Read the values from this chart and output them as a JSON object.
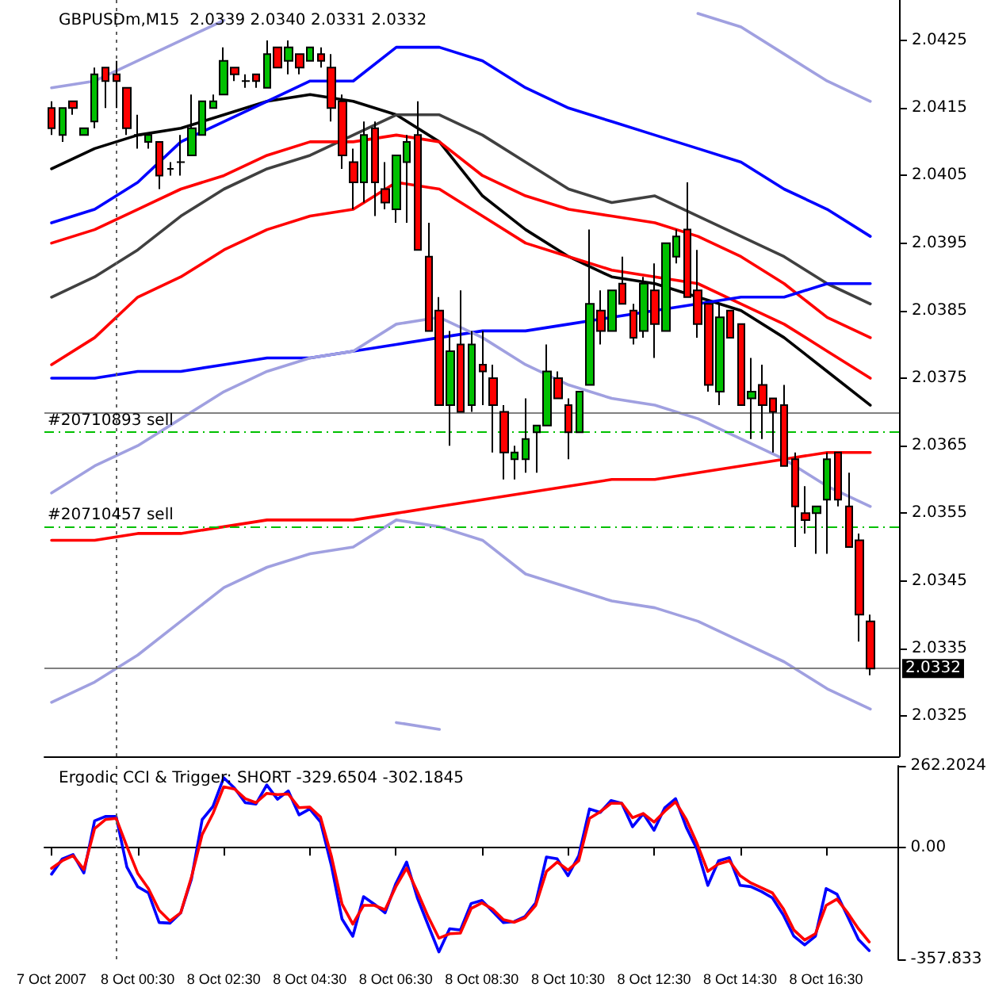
{
  "chart_data": [
    {
      "type": "candlestick",
      "title": "GBPUSDm,M15  2.0339 2.0340 2.0331 2.0332",
      "tick_labels": "y",
      "x": [
        "2007-10-07T22:30",
        "2007-10-07T22:45",
        "2007-10-07T23:00",
        "2007-10-07T23:15",
        "2007-10-07T23:30",
        "2007-10-07T23:45",
        "2007-10-08T00:00",
        "2007-10-08T00:15",
        "2007-10-08T00:30",
        "2007-10-08T00:45",
        "2007-10-08T01:00",
        "2007-10-08T01:15",
        "2007-10-08T01:30",
        "2007-10-08T01:45",
        "2007-10-08T02:00",
        "2007-10-08T02:15",
        "2007-10-08T02:30",
        "2007-10-08T02:45",
        "2007-10-08T03:00",
        "2007-10-08T03:15",
        "2007-10-08T03:30",
        "2007-10-08T03:45",
        "2007-10-08T04:00",
        "2007-10-08T04:15",
        "2007-10-08T04:30",
        "2007-10-08T04:45",
        "2007-10-08T05:00",
        "2007-10-08T05:15",
        "2007-10-08T05:30",
        "2007-10-08T05:45",
        "2007-10-08T06:00",
        "2007-10-08T06:15",
        "2007-10-08T06:30",
        "2007-10-08T06:45",
        "2007-10-08T07:00",
        "2007-10-08T07:15",
        "2007-10-08T07:30",
        "2007-10-08T07:45",
        "2007-10-08T08:00",
        "2007-10-08T08:15",
        "2007-10-08T08:30",
        "2007-10-08T08:45",
        "2007-10-08T09:00",
        "2007-10-08T09:15",
        "2007-10-08T09:30",
        "2007-10-08T09:45",
        "2007-10-08T10:00",
        "2007-10-08T10:15",
        "2007-10-08T10:30",
        "2007-10-08T10:45",
        "2007-10-08T11:00",
        "2007-10-08T11:15",
        "2007-10-08T11:30",
        "2007-10-08T11:45",
        "2007-10-08T12:00",
        "2007-10-08T12:15",
        "2007-10-08T12:30",
        "2007-10-08T12:45",
        "2007-10-08T13:00",
        "2007-10-08T13:15",
        "2007-10-08T13:30",
        "2007-10-08T13:45",
        "2007-10-08T14:00",
        "2007-10-08T14:15",
        "2007-10-08T14:30",
        "2007-10-08T14:45",
        "2007-10-08T15:00",
        "2007-10-08T15:15",
        "2007-10-08T15:30",
        "2007-10-08T15:45",
        "2007-10-08T16:00",
        "2007-10-08T16:15",
        "2007-10-08T16:30",
        "2007-10-08T16:45",
        "2007-10-08T17:00",
        "2007-10-08T17:15",
        "2007-10-08T17:30"
      ],
      "ohlc": [
        [
          2.0415,
          2.0416,
          2.0411,
          2.0412
        ],
        [
          2.0411,
          2.0415,
          2.041,
          2.0415
        ],
        [
          2.0416,
          2.0416,
          2.0414,
          2.0415
        ],
        [
          2.0411,
          2.0412,
          2.0411,
          2.0412
        ],
        [
          2.0413,
          2.0421,
          2.0412,
          2.042
        ],
        [
          2.0421,
          2.0421,
          2.0415,
          2.0419
        ],
        [
          2.042,
          2.0422,
          2.0415,
          2.0419
        ],
        [
          2.0418,
          2.0418,
          2.0411,
          2.0412
        ],
        [
          2.0411,
          2.0414,
          2.0409,
          2.0411
        ],
        [
          2.041,
          2.0411,
          2.0409,
          2.0411
        ],
        [
          2.041,
          2.041,
          2.0403,
          2.0405
        ],
        [
          2.0406,
          2.0407,
          2.0405,
          2.0406
        ],
        [
          2.0407,
          2.0411,
          2.0405,
          2.0407
        ],
        [
          2.0408,
          2.0417,
          2.0408,
          2.0412
        ],
        [
          2.0411,
          2.0416,
          2.0411,
          2.0416
        ],
        [
          2.0415,
          2.0417,
          2.0415,
          2.0416
        ],
        [
          2.0417,
          2.0424,
          2.0417,
          2.0422
        ],
        [
          2.0421,
          2.0421,
          2.0419,
          2.042
        ],
        [
          2.0419,
          2.042,
          2.0418,
          2.0419
        ],
        [
          2.042,
          2.042,
          2.0418,
          2.0419
        ],
        [
          2.0418,
          2.0425,
          2.0418,
          2.0423
        ],
        [
          2.0424,
          2.0424,
          2.0421,
          2.0421
        ],
        [
          2.0422,
          2.0425,
          2.042,
          2.0424
        ],
        [
          2.0423,
          2.0423,
          2.042,
          2.0421
        ],
        [
          2.0422,
          2.0424,
          2.0422,
          2.0424
        ],
        [
          2.0423,
          2.0424,
          2.0421,
          2.0422
        ],
        [
          2.0421,
          2.0423,
          2.0413,
          2.0415
        ],
        [
          2.0416,
          2.0417,
          2.0406,
          2.0408
        ],
        [
          2.0407,
          2.0409,
          2.04,
          2.0404
        ],
        [
          2.0404,
          2.0413,
          2.0401,
          2.0411
        ],
        [
          2.0412,
          2.0413,
          2.0399,
          2.0404
        ],
        [
          2.0403,
          2.0407,
          2.04,
          2.0401
        ],
        [
          2.04,
          2.0408,
          2.0398,
          2.0408
        ],
        [
          2.0407,
          2.0411,
          2.0398,
          2.041
        ],
        [
          2.0411,
          2.0416,
          2.0394,
          2.0394
        ],
        [
          2.0393,
          2.0398,
          2.0382,
          2.0382
        ],
        [
          2.0385,
          2.0387,
          2.0371,
          2.0371
        ],
        [
          2.0371,
          2.0382,
          2.0365,
          2.0379
        ],
        [
          2.038,
          2.0388,
          2.037,
          2.037
        ],
        [
          2.0371,
          2.0382,
          2.037,
          2.038
        ],
        [
          2.0377,
          2.0382,
          2.0371,
          2.0376
        ],
        [
          2.0375,
          2.0377,
          2.0364,
          2.0371
        ],
        [
          2.037,
          2.0371,
          2.036,
          2.0364
        ],
        [
          2.0363,
          2.0365,
          2.036,
          2.0364
        ],
        [
          2.0363,
          2.0372,
          2.0361,
          2.0366
        ],
        [
          2.0367,
          2.0368,
          2.0361,
          2.0368
        ],
        [
          2.0368,
          2.038,
          2.0368,
          2.0376
        ],
        [
          2.0375,
          2.0376,
          2.0372,
          2.0372
        ],
        [
          2.0371,
          2.0372,
          2.0363,
          2.0367
        ],
        [
          2.0367,
          2.0373,
          2.0367,
          2.0373
        ],
        [
          2.0374,
          2.0397,
          2.0374,
          2.0386
        ],
        [
          2.0385,
          2.0388,
          2.038,
          2.0382
        ],
        [
          2.0382,
          2.0388,
          2.0382,
          2.0388
        ],
        [
          2.0389,
          2.0393,
          2.0386,
          2.0386
        ],
        [
          2.0385,
          2.0386,
          2.038,
          2.0381
        ],
        [
          2.0382,
          2.039,
          2.0381,
          2.0389
        ],
        [
          2.0388,
          2.0392,
          2.0378,
          2.0383
        ],
        [
          2.0382,
          2.0395,
          2.0382,
          2.0395
        ],
        [
          2.0393,
          2.0397,
          2.0392,
          2.0396
        ],
        [
          2.0397,
          2.0404,
          2.0387,
          2.0387
        ],
        [
          2.0388,
          2.0394,
          2.0381,
          2.0383
        ],
        [
          2.0386,
          2.0386,
          2.0373,
          2.0374
        ],
        [
          2.0373,
          2.0386,
          2.0371,
          2.0384
        ],
        [
          2.0385,
          2.0385,
          2.0381,
          2.0381
        ],
        [
          2.0383,
          2.0383,
          2.0371,
          2.0371
        ],
        [
          2.0372,
          2.0378,
          2.0366,
          2.0373
        ],
        [
          2.0374,
          2.0377,
          2.0366,
          2.0371
        ],
        [
          2.0372,
          2.0372,
          2.0364,
          2.037
        ],
        [
          2.0371,
          2.0374,
          2.0362,
          2.0362
        ],
        [
          2.0363,
          2.0364,
          2.035,
          2.0356
        ],
        [
          2.0355,
          2.0359,
          2.0352,
          2.0354
        ],
        [
          2.0355,
          2.0356,
          2.0349,
          2.0356
        ],
        [
          2.0357,
          2.0364,
          2.0349,
          2.0363
        ],
        [
          2.0364,
          2.0364,
          2.0356,
          2.0357
        ],
        [
          2.0356,
          2.0361,
          2.035,
          2.035
        ],
        [
          2.0351,
          2.0352,
          2.0336,
          2.034
        ],
        [
          2.0339,
          2.034,
          2.0331,
          2.0332
        ]
      ],
      "series": [
        {
          "type": "line",
          "color": "#000000",
          "x": [
            "2007-10-07T22:30",
            "2007-10-07T23:30",
            "2007-10-08T00:30",
            "2007-10-08T01:30",
            "2007-10-08T02:30",
            "2007-10-08T03:30",
            "2007-10-08T04:30",
            "2007-10-08T05:30",
            "2007-10-08T06:30",
            "2007-10-08T07:30",
            "2007-10-08T08:30",
            "2007-10-08T09:30",
            "2007-10-08T10:30",
            "2007-10-08T11:30",
            "2007-10-08T12:30",
            "2007-10-08T13:30",
            "2007-10-08T14:30",
            "2007-10-08T15:30",
            "2007-10-08T16:30",
            "2007-10-08T17:30"
          ],
          "values": [
            2.0406,
            2.0409,
            2.0411,
            2.0412,
            2.0414,
            2.0416,
            2.0417,
            2.0416,
            2.0414,
            2.041,
            2.0402,
            2.0397,
            2.0393,
            2.039,
            2.0389,
            2.0387,
            2.0385,
            2.0381,
            2.0376,
            2.0371
          ]
        },
        {
          "type": "line",
          "color": "#0000ff",
          "x": [
            "2007-10-07T22:30",
            "2007-10-07T23:30",
            "2007-10-08T00:30",
            "2007-10-08T01:30",
            "2007-10-08T02:30",
            "2007-10-08T03:30",
            "2007-10-08T04:30",
            "2007-10-08T05:30",
            "2007-10-08T06:30",
            "2007-10-08T07:30",
            "2007-10-08T08:30",
            "2007-10-08T09:30",
            "2007-10-08T10:30",
            "2007-10-08T11:30",
            "2007-10-08T12:30",
            "2007-10-08T13:30",
            "2007-10-08T14:30",
            "2007-10-08T15:30",
            "2007-10-08T16:30",
            "2007-10-08T17:30"
          ],
          "values": [
            2.0398,
            2.04,
            2.0404,
            2.041,
            2.0413,
            2.0416,
            2.0419,
            2.0419,
            2.0424,
            2.0424,
            2.0422,
            2.0418,
            2.0415,
            2.0413,
            2.0411,
            2.0409,
            2.0407,
            2.0403,
            2.04,
            2.0396
          ]
        },
        {
          "type": "line",
          "color": "#404040",
          "x": [
            "2007-10-07T22:30",
            "2007-10-07T23:30",
            "2007-10-08T00:30",
            "2007-10-08T01:30",
            "2007-10-08T02:30",
            "2007-10-08T03:30",
            "2007-10-08T04:30",
            "2007-10-08T05:30",
            "2007-10-08T06:30",
            "2007-10-08T07:30",
            "2007-10-08T08:30",
            "2007-10-08T09:30",
            "2007-10-08T10:30",
            "2007-10-08T11:30",
            "2007-10-08T12:30",
            "2007-10-08T13:30",
            "2007-10-08T14:30",
            "2007-10-08T15:30",
            "2007-10-08T16:30",
            "2007-10-08T17:30"
          ],
          "values": [
            2.0387,
            2.039,
            2.0394,
            2.0399,
            2.0403,
            2.0406,
            2.0408,
            2.0411,
            2.0414,
            2.0414,
            2.0411,
            2.0407,
            2.0403,
            2.0401,
            2.0402,
            2.0399,
            2.0396,
            2.0393,
            2.0389,
            2.0386
          ]
        },
        {
          "type": "line",
          "color": "#ff0000",
          "x": [
            "2007-10-07T22:30",
            "2007-10-07T23:30",
            "2007-10-08T00:30",
            "2007-10-08T01:30",
            "2007-10-08T02:30",
            "2007-10-08T03:30",
            "2007-10-08T04:30",
            "2007-10-08T05:30",
            "2007-10-08T06:30",
            "2007-10-08T07:30",
            "2007-10-08T08:30",
            "2007-10-08T09:30",
            "2007-10-08T10:30",
            "2007-10-08T11:30",
            "2007-10-08T12:30",
            "2007-10-08T13:30",
            "2007-10-08T14:30",
            "2007-10-08T15:30",
            "2007-10-08T16:30",
            "2007-10-08T17:30"
          ],
          "values": [
            2.0395,
            2.0397,
            2.04,
            2.0403,
            2.0405,
            2.0408,
            2.041,
            2.041,
            2.0411,
            2.041,
            2.0405,
            2.0402,
            2.04,
            2.0399,
            2.0398,
            2.0396,
            2.0393,
            2.0389,
            2.0384,
            2.0381
          ]
        },
        {
          "type": "line",
          "color": "#ff0000",
          "x": [
            "2007-10-07T22:30",
            "2007-10-07T23:30",
            "2007-10-08T00:30",
            "2007-10-08T01:30",
            "2007-10-08T02:30",
            "2007-10-08T03:30",
            "2007-10-08T04:30",
            "2007-10-08T05:30",
            "2007-10-08T06:30",
            "2007-10-08T07:30",
            "2007-10-08T08:30",
            "2007-10-08T09:30",
            "2007-10-08T10:30",
            "2007-10-08T11:30",
            "2007-10-08T12:30",
            "2007-10-08T13:30",
            "2007-10-08T14:30",
            "2007-10-08T15:30",
            "2007-10-08T16:30",
            "2007-10-08T17:30"
          ],
          "values": [
            2.0377,
            2.0381,
            2.0387,
            2.039,
            2.0394,
            2.0397,
            2.0399,
            2.04,
            2.0404,
            2.0403,
            2.0399,
            2.0395,
            2.0393,
            2.0391,
            2.039,
            2.0389,
            2.0386,
            2.0383,
            2.0379,
            2.0375
          ]
        },
        {
          "type": "line",
          "color": "#0000ff",
          "x": [
            "2007-10-07T22:30",
            "2007-10-07T23:30",
            "2007-10-08T00:30",
            "2007-10-08T01:30",
            "2007-10-08T02:30",
            "2007-10-08T03:30",
            "2007-10-08T04:30",
            "2007-10-08T05:30",
            "2007-10-08T06:30",
            "2007-10-08T07:30",
            "2007-10-08T08:30",
            "2007-10-08T09:30",
            "2007-10-08T10:30",
            "2007-10-08T11:30",
            "2007-10-08T12:30",
            "2007-10-08T13:30",
            "2007-10-08T14:30",
            "2007-10-08T15:30",
            "2007-10-08T16:30",
            "2007-10-08T17:30"
          ],
          "values": [
            2.0375,
            2.0375,
            2.0376,
            2.0376,
            2.0377,
            2.0378,
            2.0378,
            2.0379,
            2.038,
            2.0381,
            2.0382,
            2.0382,
            2.0383,
            2.0384,
            2.0385,
            2.0386,
            2.0387,
            2.0387,
            2.0389,
            2.0389
          ]
        },
        {
          "type": "line",
          "color": "#ff0000",
          "x": [
            "2007-10-07T22:30",
            "2007-10-07T23:30",
            "2007-10-08T00:30",
            "2007-10-08T01:30",
            "2007-10-08T02:30",
            "2007-10-08T03:30",
            "2007-10-08T04:30",
            "2007-10-08T05:30",
            "2007-10-08T06:30",
            "2007-10-08T07:30",
            "2007-10-08T08:30",
            "2007-10-08T09:30",
            "2007-10-08T10:30",
            "2007-10-08T11:30",
            "2007-10-08T12:30",
            "2007-10-08T13:30",
            "2007-10-08T14:30",
            "2007-10-08T15:30",
            "2007-10-08T16:30",
            "2007-10-08T17:30"
          ],
          "values": [
            2.0351,
            2.0351,
            2.0352,
            2.0352,
            2.0353,
            2.0354,
            2.0354,
            2.0354,
            2.0355,
            2.0356,
            2.0357,
            2.0358,
            2.0359,
            2.036,
            2.036,
            2.0361,
            2.0362,
            2.0363,
            2.0364,
            2.0364
          ]
        },
        {
          "type": "line",
          "color": "#a0a0e0",
          "x": [
            "2007-10-07T22:30",
            "2007-10-07T23:30",
            "2007-10-08T00:30",
            "2007-10-08T01:30",
            "2007-10-08T02:30",
            "2007-10-08T03:30",
            "2007-10-08T13:30",
            "2007-10-08T14:30",
            "2007-10-08T15:30",
            "2007-10-08T16:30",
            "2007-10-08T17:30"
          ],
          "values": [
            2.0418,
            2.0419,
            2.0422,
            2.0425,
            2.0428,
            null,
            2.0429,
            2.0427,
            2.0423,
            2.0419,
            2.0416
          ]
        },
        {
          "type": "line",
          "color": "#a0a0e0",
          "x": [
            "2007-10-07T22:30",
            "2007-10-07T23:30",
            "2007-10-08T00:30",
            "2007-10-08T01:30",
            "2007-10-08T02:30",
            "2007-10-08T03:30",
            "2007-10-08T04:30",
            "2007-10-08T05:30",
            "2007-10-08T06:30",
            "2007-10-08T07:30",
            "2007-10-08T08:30",
            "2007-10-08T09:30",
            "2007-10-08T10:30",
            "2007-10-08T11:30",
            "2007-10-08T12:30",
            "2007-10-08T13:30",
            "2007-10-08T14:30",
            "2007-10-08T15:30",
            "2007-10-08T16:30",
            "2007-10-08T17:30"
          ],
          "values": [
            2.0358,
            2.0362,
            2.0365,
            2.0369,
            2.0373,
            2.0376,
            2.0378,
            2.0379,
            2.0383,
            2.0384,
            2.0381,
            2.0377,
            2.0374,
            2.0372,
            2.0371,
            2.0369,
            2.0366,
            2.0363,
            2.0359,
            2.0356
          ]
        },
        {
          "type": "line",
          "color": "#a0a0e0",
          "x": [
            "2007-10-07T22:30",
            "2007-10-07T23:30",
            "2007-10-08T00:30",
            "2007-10-08T01:30",
            "2007-10-08T02:30",
            "2007-10-08T03:30",
            "2007-10-08T04:30",
            "2007-10-08T05:30",
            "2007-10-08T06:30",
            "2007-10-08T07:30",
            "2007-10-08T08:30",
            "2007-10-08T09:30",
            "2007-10-08T10:30",
            "2007-10-08T11:30",
            "2007-10-08T12:30",
            "2007-10-08T13:30",
            "2007-10-08T14:30",
            "2007-10-08T15:30",
            "2007-10-08T16:30",
            "2007-10-08T17:30"
          ],
          "values": [
            2.0327,
            2.033,
            2.0334,
            2.0339,
            2.0344,
            2.0347,
            2.0349,
            2.035,
            2.0354,
            2.0353,
            2.0351,
            2.0346,
            2.0344,
            2.0342,
            2.0341,
            2.0339,
            2.0336,
            2.0333,
            2.0329,
            2.0326
          ]
        },
        {
          "type": "line",
          "color": "#a0a0e0",
          "x": [
            "2007-10-08T06:30",
            "2007-10-08T07:30"
          ],
          "values": [
            2.0324,
            2.0323
          ]
        }
      ],
      "xlim": [
        "2007-10-07T22:20",
        "2007-10-08T18:10"
      ],
      "ylim": [
        2.0319,
        2.0431
      ],
      "yticks": [
        2.0325,
        2.0335,
        2.0345,
        2.0355,
        2.0365,
        2.0375,
        2.0385,
        2.0395,
        2.0405,
        2.0415,
        2.0425
      ],
      "ref_lines": [
        {
          "axis": "y",
          "value": 2.037,
          "color": "#808080",
          "line_style": "solid"
        },
        {
          "axis": "y",
          "value": 2.0367,
          "label": "#20710893 sell",
          "color": "#00c000",
          "line_style": "dashed"
        },
        {
          "axis": "y",
          "value": 2.0353,
          "label": "#20710457 sell",
          "color": "#00c000",
          "line_style": "dashed"
        },
        {
          "axis": "y",
          "value": 2.0332,
          "label": "2.0332",
          "color": "#808080",
          "line_style": "solid"
        },
        {
          "axis": "x",
          "value": "2007-10-08T00:00",
          "color": "#606060",
          "line_style": "dotted"
        }
      ]
    },
    {
      "type": "line",
      "title": "Ergodic CCI & Trigger: SHORT -329.6504 -302.1845",
      "x": [
        "2007-10-07T22:30",
        "2007-10-07T22:45",
        "2007-10-07T23:00",
        "2007-10-07T23:15",
        "2007-10-07T23:30",
        "2007-10-07T23:45",
        "2007-10-08T00:00",
        "2007-10-08T00:15",
        "2007-10-08T00:30",
        "2007-10-08T00:45",
        "2007-10-08T01:00",
        "2007-10-08T01:15",
        "2007-10-08T01:30",
        "2007-10-08T01:45",
        "2007-10-08T02:00",
        "2007-10-08T02:15",
        "2007-10-08T02:30",
        "2007-10-08T02:45",
        "2007-10-08T03:00",
        "2007-10-08T03:15",
        "2007-10-08T03:30",
        "2007-10-08T03:45",
        "2007-10-08T04:00",
        "2007-10-08T04:15",
        "2007-10-08T04:30",
        "2007-10-08T04:45",
        "2007-10-08T05:00",
        "2007-10-08T05:15",
        "2007-10-08T05:30",
        "2007-10-08T05:45",
        "2007-10-08T06:00",
        "2007-10-08T06:15",
        "2007-10-08T06:30",
        "2007-10-08T06:45",
        "2007-10-08T07:00",
        "2007-10-08T07:15",
        "2007-10-08T07:30",
        "2007-10-08T07:45",
        "2007-10-08T08:00",
        "2007-10-08T08:15",
        "2007-10-08T08:30",
        "2007-10-08T08:45",
        "2007-10-08T09:00",
        "2007-10-08T09:15",
        "2007-10-08T09:30",
        "2007-10-08T09:45",
        "2007-10-08T10:00",
        "2007-10-08T10:15",
        "2007-10-08T10:30",
        "2007-10-08T10:45",
        "2007-10-08T11:00",
        "2007-10-08T11:15",
        "2007-10-08T11:30",
        "2007-10-08T11:45",
        "2007-10-08T12:00",
        "2007-10-08T12:15",
        "2007-10-08T12:30",
        "2007-10-08T12:45",
        "2007-10-08T13:00",
        "2007-10-08T13:15",
        "2007-10-08T13:30",
        "2007-10-08T13:45",
        "2007-10-08T14:00",
        "2007-10-08T14:15",
        "2007-10-08T14:30",
        "2007-10-08T14:45",
        "2007-10-08T15:00",
        "2007-10-08T15:15",
        "2007-10-08T15:30",
        "2007-10-08T15:45",
        "2007-10-08T16:00",
        "2007-10-08T16:15",
        "2007-10-08T16:30",
        "2007-10-08T16:45",
        "2007-10-08T17:00",
        "2007-10-08T17:15",
        "2007-10-08T17:30"
      ],
      "series": [
        {
          "color": "#0000ff",
          "values": [
            -85,
            -36,
            -22,
            -81,
            86,
            100,
            100,
            -62,
            -125,
            -145,
            -240,
            -242,
            -209,
            -101,
            90,
            132,
            224,
            191,
            144,
            140,
            201,
            155,
            182,
            105,
            124,
            82,
            -56,
            -229,
            -284,
            -157,
            -181,
            -209,
            -115,
            -46,
            -161,
            -248,
            -334,
            -260,
            -264,
            -179,
            -169,
            -205,
            -240,
            -237,
            -221,
            -177,
            -30,
            -36,
            -90,
            -26,
            124,
            113,
            151,
            142,
            67,
            109,
            56,
            128,
            157,
            65,
            -6,
            -121,
            -42,
            -32,
            -121,
            -125,
            -141,
            -161,
            -215,
            -284,
            -312,
            -284,
            -131,
            -149,
            -221,
            -294,
            -330
          ]
        },
        {
          "color": "#ff0000",
          "values": [
            -66,
            -42,
            -26,
            -70,
            61,
            90,
            94,
            4,
            -82,
            -131,
            -201,
            -235,
            -209,
            -95,
            42,
            109,
            195,
            188,
            157,
            144,
            174,
            170,
            172,
            128,
            130,
            98,
            -26,
            -181,
            -245,
            -185,
            -185,
            -199,
            -125,
            -66,
            -141,
            -221,
            -290,
            -276,
            -274,
            -195,
            -177,
            -197,
            -231,
            -239,
            -225,
            -185,
            -76,
            -46,
            -72,
            -42,
            94,
            115,
            142,
            142,
            96,
            109,
            82,
            117,
            147,
            90,
            13,
            -76,
            -52,
            -42,
            -90,
            -113,
            -129,
            -145,
            -195,
            -264,
            -296,
            -276,
            -185,
            -165,
            -209,
            -260,
            -302
          ]
        }
      ],
      "xlim": [
        "2007-10-07T22:20",
        "2007-10-08T18:10"
      ],
      "xticks": [
        {
          "value": "2007-10-07T22:30",
          "label": "7 Oct 2007"
        },
        {
          "value": "2007-10-08T00:30",
          "label": "8 Oct 00:30"
        },
        {
          "value": "2007-10-08T02:30",
          "label": "8 Oct 02:30"
        },
        {
          "value": "2007-10-08T04:30",
          "label": "8 Oct 04:30"
        },
        {
          "value": "2007-10-08T06:30",
          "label": "8 Oct 06:30"
        },
        {
          "value": "2007-10-08T08:30",
          "label": "8 Oct 08:30"
        },
        {
          "value": "2007-10-08T10:30",
          "label": "8 Oct 10:30"
        },
        {
          "value": "2007-10-08T12:30",
          "label": "8 Oct 12:30"
        },
        {
          "value": "2007-10-08T14:30",
          "label": "8 Oct 14:30"
        },
        {
          "value": "2007-10-08T16:30",
          "label": "8 Oct 16:30"
        }
      ],
      "ylim": [
        -357.833,
        262.2024
      ],
      "yticks": [
        -357.833,
        {
          "value": 0,
          "label": "0.00"
        },
        262.2024
      ],
      "ref_lines": [
        {
          "axis": "x",
          "value": "2007-10-08T00:00",
          "color": "#606060",
          "line_style": "dotted"
        }
      ]
    }
  ]
}
